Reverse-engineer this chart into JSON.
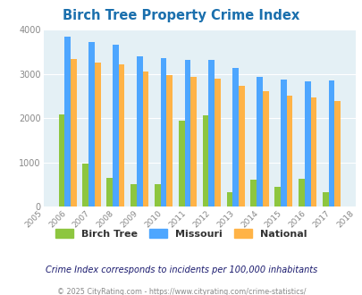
{
  "title": "Birch Tree Property Crime Index",
  "years": [
    2005,
    2006,
    2007,
    2008,
    2009,
    2010,
    2011,
    2012,
    2013,
    2014,
    2015,
    2016,
    2017,
    2018
  ],
  "birch_tree": [
    null,
    2080,
    970,
    650,
    510,
    510,
    1930,
    2060,
    320,
    610,
    440,
    635,
    320,
    null
  ],
  "missouri": [
    null,
    3840,
    3720,
    3650,
    3400,
    3360,
    3320,
    3320,
    3140,
    2930,
    2870,
    2820,
    2840,
    null
  ],
  "national": [
    null,
    3340,
    3260,
    3210,
    3050,
    2960,
    2920,
    2880,
    2720,
    2600,
    2510,
    2460,
    2380,
    null
  ],
  "birch_color": "#8dc63f",
  "missouri_color": "#4da6ff",
  "national_color": "#ffb347",
  "bg_color": "#e4f0f5",
  "ylim": [
    0,
    4000
  ],
  "yticks": [
    0,
    1000,
    2000,
    3000,
    4000
  ],
  "subtitle": "Crime Index corresponds to incidents per 100,000 inhabitants",
  "footer": "© 2025 CityRating.com - https://www.cityrating.com/crime-statistics/",
  "bar_width": 0.25,
  "title_color": "#1a6fad",
  "subtitle_color": "#1a1a6e",
  "footer_color": "#888888",
  "tick_color": "#888888",
  "legend_label_color": "#333333"
}
